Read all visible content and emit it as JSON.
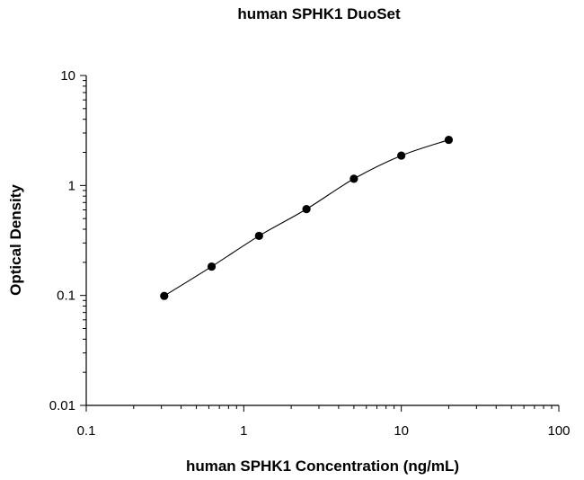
{
  "chart_data": {
    "type": "scatter",
    "title": "human SPHK1 DuoSet",
    "xlabel": "human SPHK1 Concentration (ng/mL)",
    "ylabel": "Optical Density",
    "xscale": "log",
    "yscale": "log",
    "xlim": [
      0.1,
      100
    ],
    "ylim": [
      0.01,
      10
    ],
    "x_ticks": [
      "0.1",
      "1",
      "10",
      "100"
    ],
    "y_ticks": [
      "0.01",
      "0.1",
      "1",
      "10"
    ],
    "grid": false,
    "legend": "none",
    "fit_curve": true,
    "series": [
      {
        "x": [
          0.3125,
          0.625,
          1.25,
          2.5,
          5,
          10,
          20
        ],
        "y": [
          0.099,
          0.183,
          0.348,
          0.61,
          1.15,
          1.87,
          2.6
        ]
      }
    ]
  }
}
